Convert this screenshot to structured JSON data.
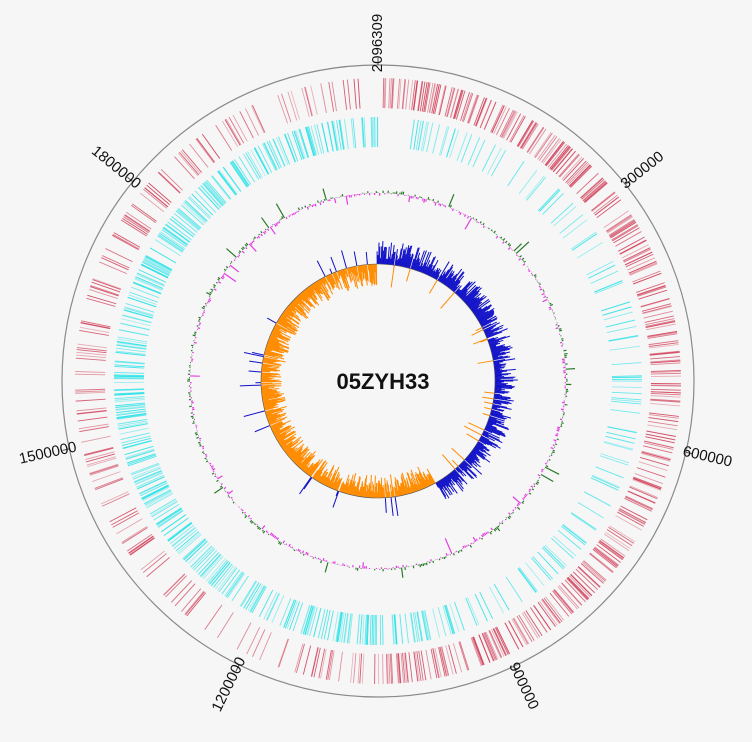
{
  "genome": {
    "name": "05ZYH33",
    "length": 2096309
  },
  "ticks": [
    {
      "label": "2096309",
      "position": 0
    },
    {
      "label": "300000",
      "position": 300000
    },
    {
      "label": "600000",
      "position": 600000
    },
    {
      "label": "900000",
      "position": 900000
    },
    {
      "label": "1200000",
      "position": 1200000
    },
    {
      "label": "1500000",
      "position": 1500000
    },
    {
      "label": "1800000",
      "position": 1800000
    }
  ],
  "tracks": {
    "cds_forward": {
      "color": "#d2435c"
    },
    "cds_reverse": {
      "color": "#2fe3e8"
    },
    "gc_content": {
      "above_color": "#2b7a2b",
      "below_color": "#e23be0"
    },
    "gc_skew": {
      "positive_color": "#1010c8",
      "negative_color": "#ff8c00"
    }
  }
}
